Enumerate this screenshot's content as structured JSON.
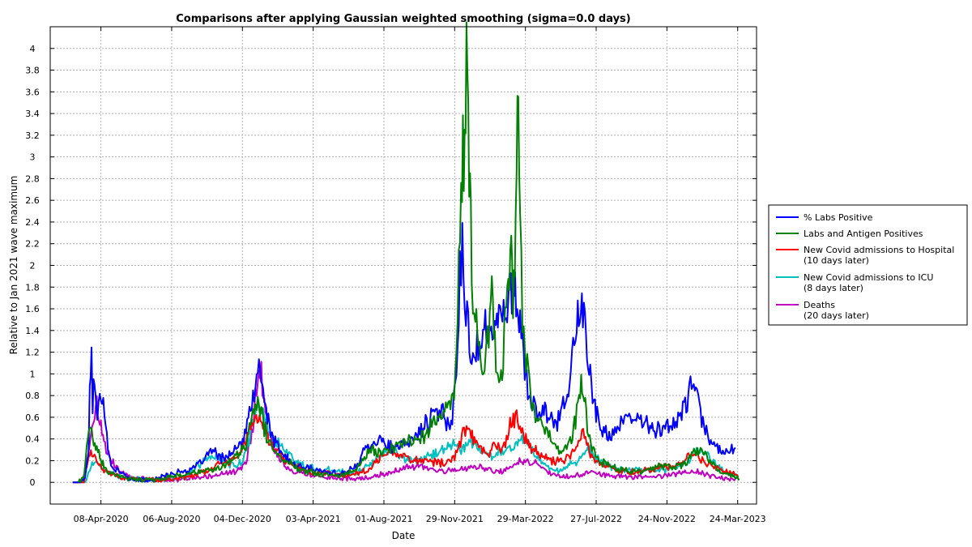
{
  "chart_data": {
    "type": "line",
    "title": "Comparisons after applying Gaussian weighted smoothing (sigma=0.0 days)",
    "xlabel": "Date",
    "ylabel": "Relative to Jan 2021 wave maximum",
    "xlim": [
      "2020-01-13",
      "2023-04-25"
    ],
    "ylim": [
      -0.2,
      4.2
    ],
    "y_ticks": [
      0,
      0.2,
      0.4,
      0.6,
      0.8,
      1,
      1.2,
      1.4,
      1.6,
      1.8,
      2,
      2.2,
      2.4,
      2.6,
      2.8,
      3,
      3.2,
      3.4,
      3.6,
      3.8,
      4
    ],
    "x_ticks": [
      {
        "date": "2020-04-08",
        "label": "08-Apr-2020"
      },
      {
        "date": "2020-08-06",
        "label": "06-Aug-2020"
      },
      {
        "date": "2020-12-04",
        "label": "04-Dec-2020"
      },
      {
        "date": "2021-04-03",
        "label": "03-Apr-2021"
      },
      {
        "date": "2021-08-01",
        "label": "01-Aug-2021"
      },
      {
        "date": "2021-11-29",
        "label": "29-Nov-2021"
      },
      {
        "date": "2022-03-29",
        "label": "29-Mar-2022"
      },
      {
        "date": "2022-07-27",
        "label": "27-Jul-2022"
      },
      {
        "date": "2022-11-24",
        "label": "24-Nov-2022"
      },
      {
        "date": "2023-03-24",
        "label": "24-Mar-2023"
      }
    ],
    "grid": true,
    "legend_position": "right",
    "series": [
      {
        "name": "% Labs Positive",
        "color": "#0000ff",
        "x": [
          "2020-02-20",
          "2020-03-05",
          "2020-03-12",
          "2020-03-18",
          "2020-03-20",
          "2020-03-23",
          "2020-03-25",
          "2020-03-28",
          "2020-04-02",
          "2020-04-08",
          "2020-04-14",
          "2020-04-20",
          "2020-04-25",
          "2020-05-05",
          "2020-05-20",
          "2020-06-05",
          "2020-06-20",
          "2020-07-01",
          "2020-07-20",
          "2020-08-05",
          "2020-08-25",
          "2020-09-10",
          "2020-09-25",
          "2020-10-05",
          "2020-10-15",
          "2020-10-25",
          "2020-11-10",
          "2020-11-25",
          "2020-12-10",
          "2020-12-20",
          "2020-12-28",
          "2021-01-03",
          "2021-01-10",
          "2021-01-17",
          "2021-01-25",
          "2021-02-05",
          "2021-02-20",
          "2021-03-10",
          "2021-04-01",
          "2021-04-20",
          "2021-05-15",
          "2021-06-01",
          "2021-06-15",
          "2021-06-25",
          "2021-07-05",
          "2021-07-15",
          "2021-07-25",
          "2021-08-05",
          "2021-08-20",
          "2021-09-05",
          "2021-09-20",
          "2021-10-05",
          "2021-10-20",
          "2021-11-05",
          "2021-11-15",
          "2021-11-25",
          "2021-12-02",
          "2021-12-08",
          "2021-12-12",
          "2021-12-18",
          "2021-12-24",
          "2021-12-30",
          "2022-01-06",
          "2022-01-12",
          "2022-01-20",
          "2022-01-28",
          "2022-02-05",
          "2022-02-12",
          "2022-02-20",
          "2022-02-28",
          "2022-03-08",
          "2022-03-15",
          "2022-03-20",
          "2022-03-26",
          "2022-04-02",
          "2022-04-10",
          "2022-04-20",
          "2022-05-01",
          "2022-05-12",
          "2022-05-22",
          "2022-06-01",
          "2022-06-10",
          "2022-06-18",
          "2022-06-24",
          "2022-07-01",
          "2022-07-08",
          "2022-07-15",
          "2022-07-25",
          "2022-08-05",
          "2022-08-20",
          "2022-09-01",
          "2022-09-15",
          "2022-10-01",
          "2022-10-15",
          "2022-11-01",
          "2022-11-15",
          "2022-12-01",
          "2022-12-15",
          "2022-12-25",
          "2023-01-01",
          "2023-01-05",
          "2023-01-12",
          "2023-01-20",
          "2023-01-30",
          "2023-02-10",
          "2023-02-25",
          "2023-03-10",
          "2023-03-20"
        ],
        "y": [
          0,
          0,
          0.05,
          0.3,
          0.8,
          1.25,
          0.7,
          1.05,
          0.6,
          0.85,
          0.7,
          0.3,
          0.15,
          0.12,
          0.05,
          0.03,
          0.02,
          0.02,
          0.05,
          0.08,
          0.1,
          0.12,
          0.18,
          0.25,
          0.3,
          0.22,
          0.25,
          0.3,
          0.45,
          0.75,
          0.95,
          1.02,
          0.8,
          0.55,
          0.4,
          0.3,
          0.2,
          0.15,
          0.12,
          0.1,
          0.08,
          0.1,
          0.15,
          0.25,
          0.35,
          0.38,
          0.4,
          0.35,
          0.3,
          0.35,
          0.4,
          0.5,
          0.6,
          0.65,
          0.58,
          0.55,
          1.1,
          1.95,
          2.1,
          1.6,
          1.3,
          1.2,
          1.3,
          1.25,
          1.4,
          1.3,
          1.5,
          1.45,
          1.65,
          1.75,
          1.82,
          1.6,
          1.4,
          1.2,
          0.9,
          0.7,
          0.6,
          0.65,
          0.6,
          0.55,
          0.75,
          0.9,
          1.2,
          1.5,
          1.55,
          1.45,
          1.1,
          0.7,
          0.45,
          0.45,
          0.5,
          0.55,
          0.6,
          0.55,
          0.5,
          0.5,
          0.5,
          0.6,
          0.7,
          0.8,
          0.95,
          0.9,
          0.6,
          0.45,
          0.35,
          0.3,
          0.3,
          0.32
        ]
      },
      {
        "name": "Labs and Antigen Positives",
        "color": "#008000",
        "x": [
          "2020-03-01",
          "2020-03-10",
          "2020-03-15",
          "2020-03-20",
          "2020-03-25",
          "2020-04-01",
          "2020-04-08",
          "2020-04-15",
          "2020-04-25",
          "2020-05-10",
          "2020-06-01",
          "2020-07-01",
          "2020-08-01",
          "2020-09-01",
          "2020-10-01",
          "2020-10-20",
          "2020-11-10",
          "2020-11-25",
          "2020-12-10",
          "2020-12-20",
          "2020-12-28",
          "2021-01-03",
          "2021-01-10",
          "2021-01-20",
          "2021-02-01",
          "2021-02-20",
          "2021-03-15",
          "2021-04-15",
          "2021-05-15",
          "2021-06-10",
          "2021-06-25",
          "2021-07-10",
          "2021-07-25",
          "2021-08-10",
          "2021-09-01",
          "2021-09-20",
          "2021-10-10",
          "2021-10-25",
          "2021-11-10",
          "2021-11-20",
          "2021-11-28",
          "2021-12-02",
          "2021-12-06",
          "2021-12-10",
          "2021-12-13",
          "2021-12-16",
          "2021-12-19",
          "2021-12-22",
          "2021-12-25",
          "2021-12-28",
          "2022-01-03",
          "2022-01-10",
          "2022-01-17",
          "2022-01-24",
          "2022-01-31",
          "2022-02-07",
          "2022-02-14",
          "2022-02-21",
          "2022-02-28",
          "2022-03-05",
          "2022-03-08",
          "2022-03-11",
          "2022-03-14",
          "2022-03-17",
          "2022-03-20",
          "2022-03-24",
          "2022-03-28",
          "2022-04-05",
          "2022-04-15",
          "2022-04-25",
          "2022-05-05",
          "2022-05-15",
          "2022-05-25",
          "2022-06-05",
          "2022-06-15",
          "2022-06-22",
          "2022-06-28",
          "2022-07-05",
          "2022-07-12",
          "2022-07-20",
          "2022-08-01",
          "2022-08-20",
          "2022-09-10",
          "2022-10-01",
          "2022-10-20",
          "2022-11-10",
          "2022-12-01",
          "2022-12-20",
          "2023-01-05",
          "2023-01-20",
          "2023-02-05",
          "2023-02-20",
          "2023-03-05",
          "2023-03-20",
          "2023-03-27"
        ],
        "y": [
          0,
          0.05,
          0.3,
          0.55,
          0.4,
          0.3,
          0.2,
          0.12,
          0.08,
          0.05,
          0.03,
          0.02,
          0.05,
          0.08,
          0.1,
          0.12,
          0.18,
          0.25,
          0.35,
          0.55,
          0.75,
          0.7,
          0.5,
          0.35,
          0.25,
          0.18,
          0.12,
          0.08,
          0.06,
          0.1,
          0.2,
          0.3,
          0.28,
          0.3,
          0.35,
          0.4,
          0.45,
          0.55,
          0.65,
          0.7,
          0.75,
          1.2,
          2.0,
          2.6,
          3.2,
          3.0,
          3.7,
          3.2,
          2.6,
          2.0,
          1.5,
          1.2,
          1.0,
          1.3,
          1.9,
          1.1,
          0.85,
          1.3,
          1.8,
          2.3,
          1.7,
          2.2,
          3.0,
          3.5,
          2.5,
          1.6,
          1.2,
          0.9,
          0.6,
          0.55,
          0.45,
          0.4,
          0.3,
          0.3,
          0.4,
          0.6,
          0.85,
          0.9,
          0.5,
          0.3,
          0.2,
          0.15,
          0.12,
          0.1,
          0.12,
          0.15,
          0.15,
          0.15,
          0.25,
          0.3,
          0.2,
          0.1,
          0.08,
          0.05,
          0.03
        ]
      },
      {
        "name": "New Covid admissions to Hospital\n(10 days later)",
        "color": "#ff0000",
        "x": [
          "2020-02-20",
          "2020-03-10",
          "2020-03-15",
          "2020-03-22",
          "2020-03-30",
          "2020-04-08",
          "2020-04-15",
          "2020-04-25",
          "2020-05-10",
          "2020-06-01",
          "2020-07-01",
          "2020-08-01",
          "2020-09-01",
          "2020-10-05",
          "2020-10-20",
          "2020-11-05",
          "2020-11-25",
          "2020-12-10",
          "2020-12-22",
          "2021-01-02",
          "2021-01-10",
          "2021-01-20",
          "2021-02-05",
          "2021-03-01",
          "2021-04-01",
          "2021-05-01",
          "2021-06-01",
          "2021-07-01",
          "2021-07-20",
          "2021-08-10",
          "2021-09-01",
          "2021-10-01",
          "2021-11-01",
          "2021-11-25",
          "2021-12-05",
          "2021-12-15",
          "2021-12-25",
          "2022-01-05",
          "2022-01-15",
          "2022-01-25",
          "2022-02-05",
          "2022-02-15",
          "2022-02-25",
          "2022-03-05",
          "2022-03-12",
          "2022-03-20",
          "2022-03-28",
          "2022-04-10",
          "2022-04-25",
          "2022-05-15",
          "2022-06-01",
          "2022-06-15",
          "2022-06-25",
          "2022-07-05",
          "2022-07-15",
          "2022-07-25",
          "2022-08-10",
          "2022-09-01",
          "2022-09-20",
          "2022-10-10",
          "2022-11-01",
          "2022-11-20",
          "2022-12-10",
          "2022-12-25",
          "2023-01-05",
          "2023-01-15",
          "2023-01-25",
          "2023-02-10",
          "2023-02-25",
          "2023-03-15",
          "2023-03-25"
        ],
        "y": [
          0,
          0,
          0.15,
          0.3,
          0.2,
          0.15,
          0.1,
          0.08,
          0.05,
          0.03,
          0.02,
          0.03,
          0.05,
          0.1,
          0.15,
          0.18,
          0.25,
          0.4,
          0.55,
          0.65,
          0.5,
          0.35,
          0.25,
          0.15,
          0.1,
          0.08,
          0.07,
          0.1,
          0.2,
          0.3,
          0.25,
          0.2,
          0.18,
          0.2,
          0.3,
          0.5,
          0.45,
          0.35,
          0.3,
          0.25,
          0.35,
          0.3,
          0.4,
          0.55,
          0.6,
          0.5,
          0.4,
          0.3,
          0.25,
          0.2,
          0.2,
          0.25,
          0.35,
          0.45,
          0.3,
          0.2,
          0.15,
          0.12,
          0.1,
          0.1,
          0.12,
          0.15,
          0.15,
          0.2,
          0.3,
          0.25,
          0.2,
          0.15,
          0.1,
          0.08,
          0.05
        ]
      },
      {
        "name": "New Covid admissions to ICU\n(8 days later)",
        "color": "#00bfbf",
        "x": [
          "2020-02-20",
          "2020-03-12",
          "2020-03-20",
          "2020-03-28",
          "2020-04-05",
          "2020-04-15",
          "2020-04-25",
          "2020-05-10",
          "2020-06-01",
          "2020-07-01",
          "2020-08-01",
          "2020-09-01",
          "2020-09-15",
          "2020-10-01",
          "2020-10-15",
          "2020-11-01",
          "2020-11-20",
          "2020-12-05",
          "2020-12-15",
          "2020-12-25",
          "2021-01-02",
          "2021-01-10",
          "2021-01-20",
          "2021-02-01",
          "2021-02-15",
          "2021-03-01",
          "2021-03-20",
          "2021-04-15",
          "2021-05-15",
          "2021-06-15",
          "2021-07-05",
          "2021-07-25",
          "2021-08-15",
          "2021-09-10",
          "2021-10-01",
          "2021-10-20",
          "2021-11-10",
          "2021-11-25",
          "2021-12-10",
          "2021-12-25",
          "2022-01-10",
          "2022-01-25",
          "2022-02-10",
          "2022-02-25",
          "2022-03-10",
          "2022-03-25",
          "2022-04-10",
          "2022-05-01",
          "2022-05-20",
          "2022-06-10",
          "2022-06-25",
          "2022-07-05",
          "2022-07-15",
          "2022-08-01",
          "2022-08-20",
          "2022-09-15",
          "2022-10-10",
          "2022-11-01",
          "2022-11-25",
          "2022-12-15",
          "2023-01-01",
          "2023-01-15",
          "2023-02-01",
          "2023-02-15",
          "2023-03-01",
          "2023-03-15",
          "2023-03-25"
        ],
        "y": [
          0,
          0,
          0.1,
          0.2,
          0.15,
          0.1,
          0.08,
          0.05,
          0.03,
          0.02,
          0.03,
          0.05,
          0.15,
          0.2,
          0.25,
          0.2,
          0.15,
          0.2,
          0.4,
          0.6,
          0.7,
          0.6,
          0.45,
          0.35,
          0.3,
          0.2,
          0.15,
          0.12,
          0.1,
          0.08,
          0.15,
          0.25,
          0.3,
          0.2,
          0.2,
          0.25,
          0.3,
          0.35,
          0.3,
          0.38,
          0.3,
          0.25,
          0.28,
          0.3,
          0.35,
          0.4,
          0.3,
          0.15,
          0.1,
          0.15,
          0.2,
          0.25,
          0.3,
          0.2,
          0.15,
          0.1,
          0.12,
          0.1,
          0.12,
          0.15,
          0.2,
          0.3,
          0.25,
          0.15,
          0.1,
          0.08,
          0.05
        ]
      },
      {
        "name": "Deaths\n(20 days later)",
        "color": "#bf00bf",
        "x": [
          "2020-02-20",
          "2020-03-01",
          "2020-03-10",
          "2020-03-18",
          "2020-03-25",
          "2020-04-01",
          "2020-04-08",
          "2020-04-15",
          "2020-04-25",
          "2020-05-10",
          "2020-06-01",
          "2020-07-01",
          "2020-08-01",
          "2020-09-01",
          "2020-10-01",
          "2020-11-01",
          "2020-11-25",
          "2020-12-10",
          "2020-12-20",
          "2020-12-28",
          "2021-01-05",
          "2021-01-12",
          "2021-01-20",
          "2021-02-01",
          "2021-02-15",
          "2021-03-01",
          "2021-03-20",
          "2021-04-15",
          "2021-05-15",
          "2021-06-15",
          "2021-07-15",
          "2021-08-15",
          "2021-09-15",
          "2021-10-15",
          "2021-11-15",
          "2021-12-15",
          "2022-01-05",
          "2022-01-25",
          "2022-02-15",
          "2022-03-05",
          "2022-03-25",
          "2022-04-15",
          "2022-05-05",
          "2022-05-25",
          "2022-06-15",
          "2022-07-05",
          "2022-07-25",
          "2022-08-15",
          "2022-09-15",
          "2022-10-15",
          "2022-11-15",
          "2022-12-15",
          "2023-01-05",
          "2023-01-25",
          "2023-02-15",
          "2023-03-05",
          "2023-03-20"
        ],
        "y": [
          0,
          0,
          0.05,
          0.3,
          0.55,
          0.7,
          0.55,
          0.35,
          0.2,
          0.1,
          0.05,
          0.03,
          0.02,
          0.03,
          0.05,
          0.08,
          0.1,
          0.2,
          0.45,
          0.9,
          1.0,
          0.7,
          0.4,
          0.25,
          0.15,
          0.1,
          0.08,
          0.05,
          0.04,
          0.03,
          0.05,
          0.1,
          0.15,
          0.12,
          0.1,
          0.12,
          0.15,
          0.12,
          0.1,
          0.15,
          0.2,
          0.18,
          0.1,
          0.05,
          0.05,
          0.08,
          0.1,
          0.06,
          0.05,
          0.05,
          0.06,
          0.08,
          0.1,
          0.08,
          0.05,
          0.04,
          0.03
        ]
      }
    ]
  }
}
